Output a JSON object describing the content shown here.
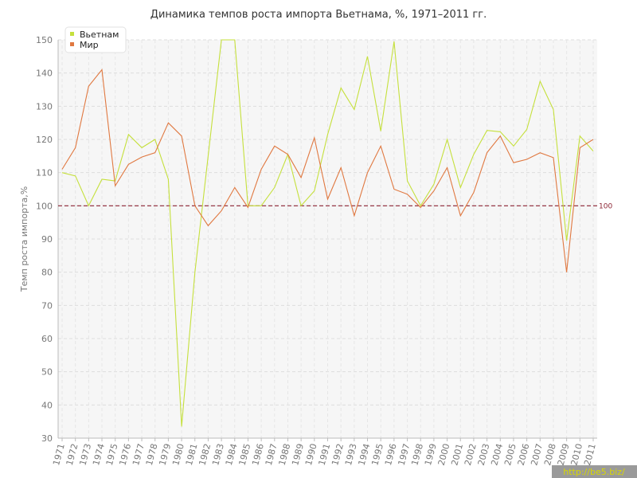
{
  "chart_data": {
    "type": "line",
    "title": "Динамика темпов роста импорта Вьетнама, %, 1971–2011 гг.",
    "ylabel": "Темп роста импорта,%",
    "xlabel": "",
    "ylim": [
      30,
      150
    ],
    "yticks": [
      30,
      40,
      50,
      60,
      70,
      80,
      90,
      100,
      110,
      120,
      130,
      140,
      150
    ],
    "x": [
      "1971",
      "1972",
      "1973",
      "1974",
      "1975",
      "1976",
      "1977",
      "1978",
      "1979",
      "1980",
      "1981",
      "1982",
      "1983",
      "1984",
      "1985",
      "1986",
      "1987",
      "1988",
      "1989",
      "1990",
      "1991",
      "1992",
      "1993",
      "1994",
      "1995",
      "1996",
      "1997",
      "1998",
      "1999",
      "2000",
      "2001",
      "2002",
      "2003",
      "2004",
      "2005",
      "2006",
      "2007",
      "2008",
      "2009",
      "2010",
      "2011"
    ],
    "series": [
      {
        "name": "Вьетнам",
        "color": "#c5e03c",
        "values": [
          110,
          109,
          100,
          108,
          107.5,
          121.5,
          117.5,
          120,
          108,
          33.5,
          80,
          115,
          150,
          150,
          100,
          100,
          105.5,
          115.5,
          100,
          104.5,
          121.5,
          135.5,
          129,
          145,
          122.5,
          149.5,
          107.5,
          100,
          106.5,
          120,
          105.5,
          115.5,
          122.7,
          122.3,
          118,
          123,
          137.5,
          129,
          89.5,
          121,
          116.5
        ]
      },
      {
        "name": "Мир",
        "color": "#e07840",
        "values": [
          111,
          117.5,
          136,
          141,
          106,
          112.5,
          114.7,
          116,
          125,
          121,
          100,
          94,
          98.5,
          105.5,
          99.5,
          111,
          118,
          115.5,
          108.5,
          120.5,
          102,
          111.5,
          97,
          110,
          118,
          105,
          103.5,
          99.5,
          104.5,
          111.5,
          97,
          104,
          116,
          121,
          113,
          114,
          116,
          114.5,
          80,
          117.5,
          120
        ]
      }
    ],
    "reference_line": {
      "value": 100,
      "label": "100",
      "color": "#8b2232"
    },
    "grid": true,
    "legend_position": "top-left"
  },
  "watermark": "http://be5.biz/"
}
